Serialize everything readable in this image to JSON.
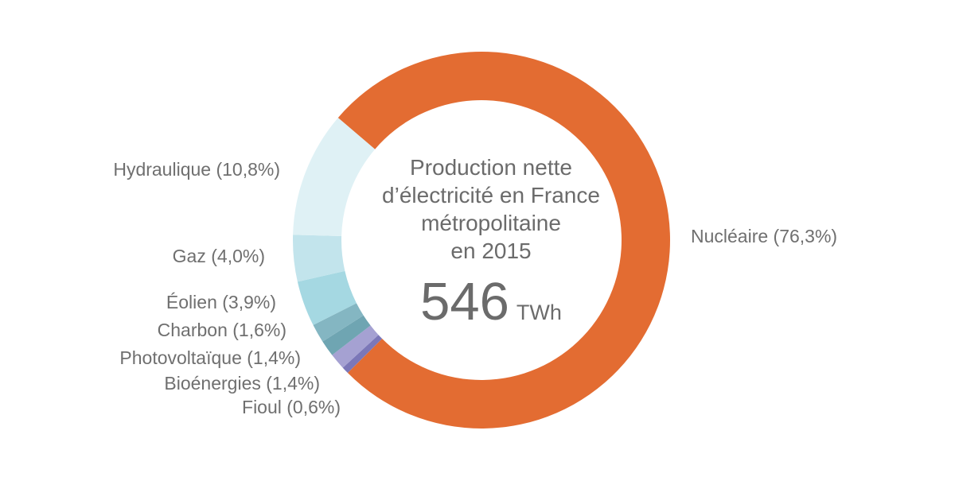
{
  "chart_data": {
    "type": "pie",
    "variant": "donut",
    "title": "Production nette\nd’électricité en France\nmétropolitaine\nen 2015",
    "center_value": "546",
    "center_unit": "TWh",
    "total_label": "546 TWh",
    "text_color": "#6F6F6F",
    "legend_position": "around-ring",
    "series": [
      {
        "id": "nucleaire",
        "name": "Nucléaire",
        "pct": 76.3,
        "label": "Nucléaire (76,3%)",
        "color": "#E36C32"
      },
      {
        "id": "hydraulique",
        "name": "Hydraulique",
        "pct": 10.8,
        "label": "Hydraulique (10,8%)",
        "color": "#DFF1F5"
      },
      {
        "id": "gaz",
        "name": "Gaz",
        "pct": 4.0,
        "label": "Gaz (4,0%)",
        "color": "#C2E4EC"
      },
      {
        "id": "eolien",
        "name": "Éolien",
        "pct": 3.9,
        "label": "Éolien (3,9%)",
        "color": "#A5D8E2"
      },
      {
        "id": "charbon",
        "name": "Charbon",
        "pct": 1.6,
        "label": "Charbon (1,6%)",
        "color": "#84B6C2"
      },
      {
        "id": "photovoltaique",
        "name": "Photovoltaïque",
        "pct": 1.4,
        "label": "Photovoltaïque (1,4%)",
        "color": "#6FA5B2"
      },
      {
        "id": "bioenergies",
        "name": "Bioénergies",
        "pct": 1.4,
        "label": "Bioénergies (1,4%)",
        "color": "#A5A1D2"
      },
      {
        "id": "fioul",
        "name": "Fioul",
        "pct": 0.6,
        "label": "Fioul (0,6%)",
        "color": "#7B77B8"
      }
    ]
  }
}
